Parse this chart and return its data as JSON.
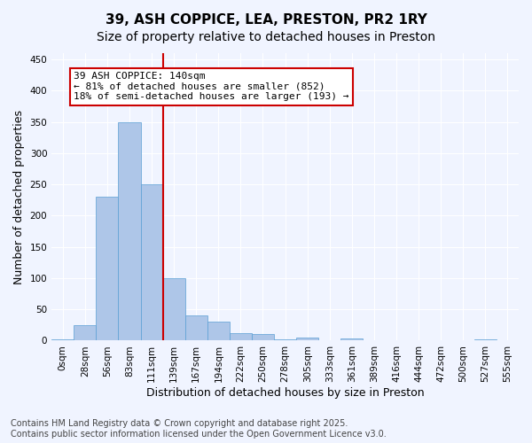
{
  "title_line1": "39, ASH COPPICE, LEA, PRESTON, PR2 1RY",
  "title_line2": "Size of property relative to detached houses in Preston",
  "xlabel": "Distribution of detached houses by size in Preston",
  "ylabel": "Number of detached properties",
  "bar_values": [
    2,
    25,
    230,
    350,
    250,
    100,
    40,
    30,
    12,
    10,
    2,
    5,
    0,
    3,
    0,
    0,
    0,
    0,
    0,
    2
  ],
  "bin_labels": [
    "0sqm",
    "28sqm",
    "56sqm",
    "83sqm",
    "111sqm",
    "139sqm",
    "167sqm",
    "194sqm",
    "222sqm",
    "250sqm",
    "278sqm",
    "305sqm",
    "333sqm",
    "361sqm",
    "389sqm",
    "416sqm",
    "444sqm",
    "472sqm",
    "500sqm",
    "527sqm"
  ],
  "extra_tick_label": "555sqm",
  "bar_color": "#aec6e8",
  "bar_edge_color": "#5a9fd4",
  "bar_width": 1.0,
  "vline_x": 4.5,
  "vline_color": "#cc0000",
  "annotation_text": "39 ASH COPPICE: 140sqm\n← 81% of detached houses are smaller (852)\n18% of semi-detached houses are larger (193) →",
  "annotation_box_color": "#cc0000",
  "annotation_text_color": "#000000",
  "annotation_fontsize": 8,
  "ylim": [
    0,
    460
  ],
  "yticks": [
    0,
    50,
    100,
    150,
    200,
    250,
    300,
    350,
    400,
    450
  ],
  "bg_color": "#f0f4ff",
  "grid_color": "#ffffff",
  "footer_text": "Contains HM Land Registry data © Crown copyright and database right 2025.\nContains public sector information licensed under the Open Government Licence v3.0.",
  "title_fontsize": 11,
  "subtitle_fontsize": 10,
  "axis_label_fontsize": 9,
  "tick_fontsize": 7.5,
  "footer_fontsize": 7
}
